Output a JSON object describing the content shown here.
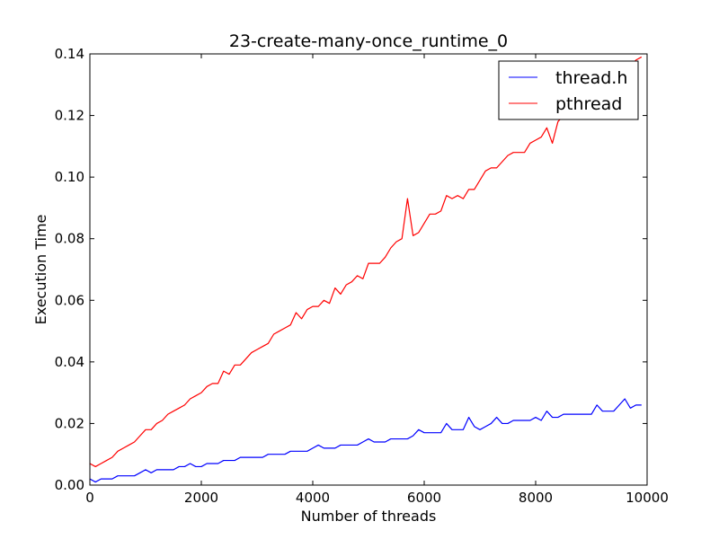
{
  "chart_data": {
    "type": "line",
    "title": "23-create-many-once_runtime_0",
    "xlabel": "Number of threads",
    "ylabel": "Execution Time",
    "xlim": [
      0,
      10000
    ],
    "ylim": [
      0,
      0.14
    ],
    "xticks": [
      0,
      2000,
      4000,
      6000,
      8000,
      10000
    ],
    "yticks": [
      0.0,
      0.02,
      0.04,
      0.06,
      0.08,
      0.1,
      0.12,
      0.14
    ],
    "xtick_labels": [
      "0",
      "2000",
      "4000",
      "6000",
      "8000",
      "10000"
    ],
    "ytick_labels": [
      "0.00",
      "0.02",
      "0.04",
      "0.06",
      "0.08",
      "0.10",
      "0.12",
      "0.14"
    ],
    "grid": false,
    "legend_position": "top-right",
    "x": [
      0,
      100,
      200,
      300,
      400,
      500,
      600,
      700,
      800,
      900,
      1000,
      1100,
      1200,
      1300,
      1400,
      1500,
      1600,
      1700,
      1800,
      1900,
      2000,
      2100,
      2200,
      2300,
      2400,
      2500,
      2600,
      2700,
      2800,
      2900,
      3000,
      3100,
      3200,
      3300,
      3400,
      3500,
      3600,
      3700,
      3800,
      3900,
      4000,
      4100,
      4200,
      4300,
      4400,
      4500,
      4600,
      4700,
      4800,
      4900,
      5000,
      5100,
      5200,
      5300,
      5400,
      5500,
      5600,
      5700,
      5800,
      5900,
      6000,
      6100,
      6200,
      6300,
      6400,
      6500,
      6600,
      6700,
      6800,
      6900,
      7000,
      7100,
      7200,
      7300,
      7400,
      7500,
      7600,
      7700,
      7800,
      7900,
      8000,
      8100,
      8200,
      8300,
      8400,
      8500,
      8600,
      8700,
      8800,
      8900,
      9000,
      9100,
      9200,
      9300,
      9400,
      9500,
      9600,
      9700,
      9800,
      9900
    ],
    "series": [
      {
        "name": "thread.h",
        "color": "#0000ff",
        "values": [
          0.002,
          0.001,
          0.002,
          0.002,
          0.002,
          0.003,
          0.003,
          0.003,
          0.003,
          0.004,
          0.005,
          0.004,
          0.005,
          0.005,
          0.005,
          0.005,
          0.006,
          0.006,
          0.007,
          0.006,
          0.006,
          0.007,
          0.007,
          0.007,
          0.008,
          0.008,
          0.008,
          0.009,
          0.009,
          0.009,
          0.009,
          0.009,
          0.01,
          0.01,
          0.01,
          0.01,
          0.011,
          0.011,
          0.011,
          0.011,
          0.012,
          0.013,
          0.012,
          0.012,
          0.012,
          0.013,
          0.013,
          0.013,
          0.013,
          0.014,
          0.015,
          0.014,
          0.014,
          0.014,
          0.015,
          0.015,
          0.015,
          0.015,
          0.016,
          0.018,
          0.017,
          0.017,
          0.017,
          0.017,
          0.02,
          0.018,
          0.018,
          0.018,
          0.022,
          0.019,
          0.018,
          0.019,
          0.02,
          0.022,
          0.02,
          0.02,
          0.021,
          0.021,
          0.021,
          0.021,
          0.022,
          0.021,
          0.024,
          0.022,
          0.022,
          0.023,
          0.023,
          0.023,
          0.023,
          0.023,
          0.023,
          0.026,
          0.024,
          0.024,
          0.024,
          0.026,
          0.028,
          0.025,
          0.026,
          0.026
        ]
      },
      {
        "name": "pthread",
        "color": "#ff0000",
        "values": [
          0.007,
          0.006,
          0.007,
          0.008,
          0.009,
          0.011,
          0.012,
          0.013,
          0.014,
          0.016,
          0.018,
          0.018,
          0.02,
          0.021,
          0.023,
          0.024,
          0.025,
          0.026,
          0.028,
          0.029,
          0.03,
          0.032,
          0.033,
          0.033,
          0.037,
          0.036,
          0.039,
          0.039,
          0.041,
          0.043,
          0.044,
          0.045,
          0.046,
          0.049,
          0.05,
          0.051,
          0.052,
          0.056,
          0.054,
          0.057,
          0.058,
          0.058,
          0.06,
          0.059,
          0.064,
          0.062,
          0.065,
          0.066,
          0.068,
          0.067,
          0.072,
          0.072,
          0.072,
          0.074,
          0.077,
          0.079,
          0.08,
          0.093,
          0.081,
          0.082,
          0.085,
          0.088,
          0.088,
          0.089,
          0.094,
          0.093,
          0.094,
          0.093,
          0.096,
          0.096,
          0.099,
          0.102,
          0.103,
          0.103,
          0.105,
          0.107,
          0.108,
          0.108,
          0.108,
          0.111,
          0.112,
          0.113,
          0.116,
          0.111,
          0.118,
          0.12,
          0.121,
          0.122,
          0.124,
          0.126,
          0.127,
          0.129,
          0.13,
          0.13,
          0.131,
          0.133,
          0.135,
          0.136,
          0.138,
          0.139
        ]
      }
    ]
  }
}
